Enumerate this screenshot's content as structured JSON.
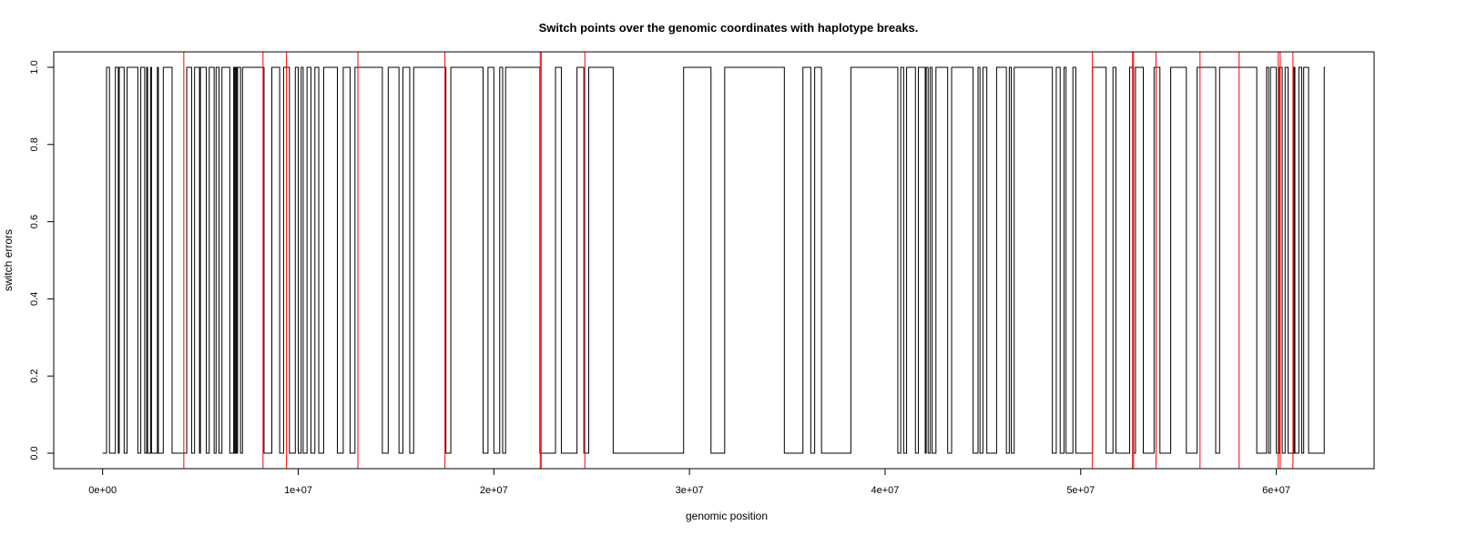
{
  "chart_data": {
    "type": "line",
    "title": "Switch points over the genomic coordinates with haplotype breaks.",
    "xlabel": "genomic position",
    "ylabel": "switch errors",
    "xlim": [
      -2500000,
      65000000
    ],
    "ylim": [
      -0.04,
      1.04
    ],
    "grid": false,
    "x_ticks": [
      {
        "value": 0,
        "label": "0e+00"
      },
      {
        "value": 10000000,
        "label": "1e+07"
      },
      {
        "value": 20000000,
        "label": "2e+07"
      },
      {
        "value": 30000000,
        "label": "3e+07"
      },
      {
        "value": 40000000,
        "label": "4e+07"
      },
      {
        "value": 50000000,
        "label": "5e+07"
      },
      {
        "value": 60000000,
        "label": "6e+07"
      }
    ],
    "y_ticks": [
      {
        "value": 0.0,
        "label": "0.0"
      },
      {
        "value": 0.2,
        "label": "0.2"
      },
      {
        "value": 0.4,
        "label": "0.4"
      },
      {
        "value": 0.6,
        "label": "0.6"
      },
      {
        "value": 0.8,
        "label": "0.8"
      },
      {
        "value": 1.0,
        "label": "1.0"
      }
    ],
    "series": [
      {
        "style": "step",
        "color": "#000000",
        "x_start": 0,
        "x_end": 62500000,
        "initial_value": 0,
        "transitions": [
          200000,
          350000,
          650000,
          800000,
          850000,
          1100000,
          1250000,
          1800000,
          1950000,
          2150000,
          2250000,
          2300000,
          2450000,
          2500000,
          2800000,
          2850000,
          3100000,
          3550000,
          4300000,
          4550000,
          4700000,
          4950000,
          5000000,
          5300000,
          5450000,
          5700000,
          5800000,
          5950000,
          6100000,
          6500000,
          6700000,
          6750000,
          6800000,
          6850000,
          6900000,
          7050000,
          7150000,
          8250000,
          8650000,
          9050000,
          9250000,
          9550000,
          9850000,
          10000000,
          10150000,
          10250000,
          10450000,
          10650000,
          10850000,
          11050000,
          11300000,
          12000000,
          12300000,
          12650000,
          12900000,
          14300000,
          14600000,
          15150000,
          15350000,
          15700000,
          15900000,
          17550000,
          17800000,
          19450000,
          19700000,
          20000000,
          20300000,
          20450000,
          20600000,
          22350000,
          23150000,
          23450000,
          24250000,
          24600000,
          24850000,
          26100000,
          29700000,
          31100000,
          31800000,
          34850000,
          35800000,
          36200000,
          36400000,
          36750000,
          38250000,
          40650000,
          40800000,
          40950000,
          41100000,
          41550000,
          41700000,
          42050000,
          42100000,
          42200000,
          42300000,
          42400000,
          42600000,
          43200000,
          43400000,
          44500000,
          44750000,
          44850000,
          45000000,
          45200000,
          45700000,
          46200000,
          46350000,
          46450000,
          46600000,
          48550000,
          48750000,
          48950000,
          49150000,
          49250000,
          49600000,
          49750000,
          50600000,
          51300000,
          51650000,
          51800000,
          52500000,
          52700000,
          52800000,
          53200000,
          53750000,
          54050000,
          54600000,
          55400000,
          55950000,
          56900000,
          57100000,
          59000000,
          59500000,
          59600000,
          59700000,
          60000000,
          60150000,
          60300000,
          60450000,
          60600000,
          60900000,
          60950000,
          61150000,
          61300000,
          61400000,
          61650000,
          62450000
        ]
      }
    ],
    "vertical_lines": {
      "color": "#ff0000",
      "x": [
        4150000,
        8200000,
        9400000,
        13050000,
        17500000,
        22370000,
        22420000,
        24650000,
        50600000,
        52650000,
        52700000,
        53850000,
        56100000,
        58100000,
        60100000,
        60200000,
        60850000
      ]
    }
  }
}
